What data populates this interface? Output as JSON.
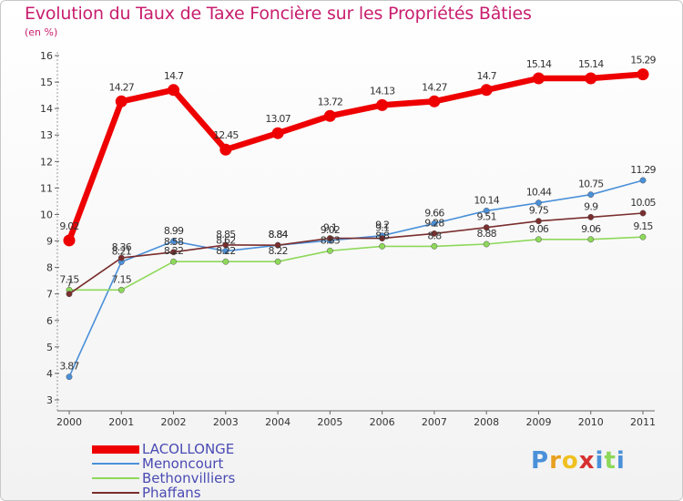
{
  "header": {
    "title": "Evolution du Taux de Taxe Foncière sur les Propriétés Bâties",
    "subtitle": "(en %)"
  },
  "chart_data": {
    "type": "line",
    "title": "Evolution du Taux de Taxe Foncière sur les Propriétés Bâties",
    "ylabel": "(en %)",
    "xlabel": "",
    "x": [
      "2000",
      "2001",
      "2002",
      "2003",
      "2004",
      "2005",
      "2006",
      "2007",
      "2008",
      "2009",
      "2010",
      "2011"
    ],
    "ylim": [
      3,
      16
    ],
    "yticks": [
      "3",
      "4",
      "5",
      "6",
      "7",
      "8",
      "9",
      "10",
      "11",
      "12",
      "13",
      "14",
      "15",
      "16"
    ],
    "grid": false,
    "legend": "bottom-left",
    "series": [
      {
        "name": "LACOLLONGE",
        "color": "#ee0000",
        "values": [
          9.02,
          14.27,
          14.7,
          12.45,
          13.07,
          13.72,
          14.13,
          14.27,
          14.7,
          15.14,
          15.14,
          15.29
        ],
        "labels": [
          "9.02",
          "14.27",
          "14.7",
          "12.45",
          "13.07",
          "13.72",
          "14.13",
          "14.27",
          "14.7",
          "15.14",
          "15.14",
          "15.29"
        ]
      },
      {
        "name": "Menoncourt",
        "color": "#4a90d9",
        "values": [
          3.87,
          8.21,
          8.99,
          8.62,
          8.84,
          9.02,
          9.2,
          9.66,
          10.14,
          10.44,
          10.75,
          11.29
        ],
        "labels": [
          "3.87",
          "8.21",
          "8.99",
          "8.62",
          "8.84",
          "9.02",
          "9.2",
          "9.66",
          "10.14",
          "10.44",
          "10.75",
          "11.29"
        ]
      },
      {
        "name": "Bethonvilliers",
        "color": "#8ed85a",
        "values": [
          7.15,
          7.15,
          8.22,
          8.22,
          8.22,
          8.63,
          8.8,
          8.8,
          8.88,
          9.06,
          9.06,
          9.15
        ],
        "labels": [
          "7.15",
          "7.15",
          "8.22",
          "8.22",
          "8.22",
          "8.63",
          "8.8",
          "8.8",
          "8.88",
          "9.06",
          "9.06",
          "9.15"
        ]
      },
      {
        "name": "Phaffans",
        "color": "#7a2e2e",
        "values": [
          7.0,
          8.36,
          8.58,
          8.85,
          8.84,
          9.1,
          9.1,
          9.28,
          9.51,
          9.75,
          9.9,
          10.05
        ],
        "labels": [
          "7",
          "8.36",
          "8.58",
          "8.85",
          "8.84",
          "9.1",
          "9.1",
          "9.28",
          "9.51",
          "9.75",
          "9.9",
          "10.05"
        ]
      }
    ]
  },
  "logo": {
    "text": "Proxiti",
    "letters": [
      "P",
      "r",
      "o",
      "x",
      "i",
      "t",
      "i"
    ],
    "colors": [
      "#4a90d9",
      "#e8a020",
      "#f0c020",
      "#d63030",
      "#4a90d9",
      "#8ed85a",
      "#4a90d9"
    ]
  }
}
